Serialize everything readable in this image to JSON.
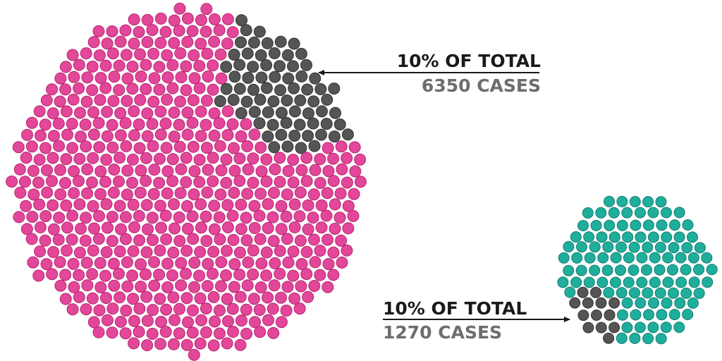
{
  "annotations": [
    {
      "title": "10% OF TOTAL",
      "subtitle": "6350 CASES"
    },
    {
      "title": "10% OF TOTAL",
      "subtitle": "1270 CASES"
    }
  ]
}
